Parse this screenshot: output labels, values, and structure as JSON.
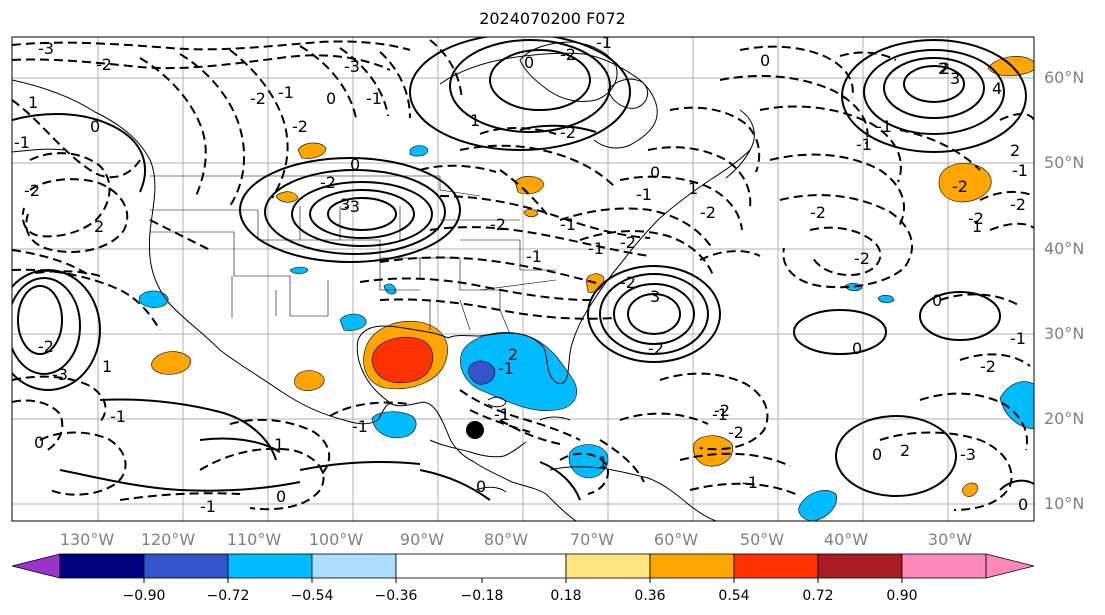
{
  "title": "2024070200 F072",
  "lon_labels": [
    "130°W",
    "120°W",
    "110°W",
    "100°W",
    "90°W",
    "80°W",
    "70°W",
    "60°W",
    "50°W",
    "40°W",
    "30°W"
  ],
  "lat_labels": [
    "60°N",
    "50°N",
    "40°N",
    "30°N",
    "20°N",
    "10°N"
  ],
  "colorbar": {
    "tick_labels": [
      "−0.90",
      "−0.72",
      "−0.54",
      "−0.36",
      "−0.18",
      "0.18",
      "0.36",
      "0.54",
      "0.72",
      "0.90"
    ],
    "colors": [
      "#9933cc",
      "#000080",
      "#3355cc",
      "#00bbff",
      "#aaddff",
      "#ffffff",
      "#ffe480",
      "#ffa500",
      "#ff3300",
      "#aa1c22",
      "#ff88bb"
    ]
  },
  "contour_labels": [
    "-3",
    "-2",
    "1",
    "-1",
    "0",
    "-2",
    "2",
    "-2",
    "-3",
    "1",
    "-1",
    "3",
    "4",
    "2",
    "0",
    "-2",
    "-3",
    "-2",
    "-1",
    "-2",
    "0",
    "-3",
    "-1",
    "-2",
    "0",
    "-1",
    "1",
    "-2",
    "-2",
    "-1",
    "-1",
    "-1",
    "-1",
    "0",
    "-2",
    "1",
    "-2",
    "0",
    "3",
    "-2",
    "-2",
    "-2",
    "0",
    "-1",
    "-2",
    "2",
    "-1",
    "-2",
    "-2",
    "-1",
    "3",
    "2",
    "-2",
    "1",
    "-1",
    "-2",
    "-2",
    "-1",
    "-1",
    "-3",
    "2",
    "0",
    "-2",
    "0",
    "1",
    "0",
    "-1",
    "2",
    "-1",
    "0",
    "-1",
    "0",
    "-1",
    "1",
    "0"
  ]
}
